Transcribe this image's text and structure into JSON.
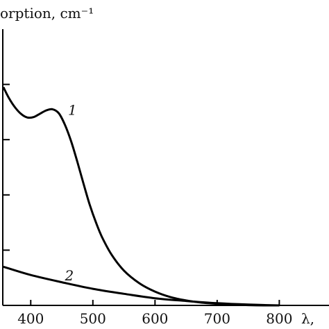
{
  "chart_data": {
    "type": "line",
    "ylabel": "orption, cm⁻¹",
    "xlabel": "λ,",
    "xlim": [
      355,
      880
    ],
    "ylim": [
      0,
      5
    ],
    "xticks": [
      400,
      500,
      600,
      700,
      800
    ],
    "yticks": [
      1,
      2,
      3,
      4
    ],
    "grid": false,
    "legend": "none",
    "line_color": "#000000",
    "series": [
      {
        "name": "1",
        "label_at": [
          460,
          3.45
        ],
        "x": [
          356,
          365,
          375,
          385,
          395,
          405,
          415,
          425,
          435,
          445,
          455,
          465,
          475,
          485,
          495,
          505,
          515,
          530,
          550,
          575,
          600,
          625,
          650,
          675,
          700,
          725,
          750,
          775,
          800
        ],
        "y": [
          3.95,
          3.75,
          3.58,
          3.46,
          3.4,
          3.41,
          3.47,
          3.53,
          3.55,
          3.48,
          3.27,
          2.97,
          2.6,
          2.2,
          1.82,
          1.5,
          1.23,
          0.92,
          0.63,
          0.4,
          0.25,
          0.15,
          0.09,
          0.05,
          0.03,
          0.015,
          0.005,
          0.0,
          0.0
        ]
      },
      {
        "name": "2",
        "label_at": [
          455,
          0.45
        ],
        "x": [
          356,
          400,
          450,
          500,
          550,
          600,
          650,
          700,
          750,
          800
        ],
        "y": [
          0.7,
          0.55,
          0.42,
          0.3,
          0.21,
          0.13,
          0.08,
          0.04,
          0.015,
          0.0
        ]
      }
    ]
  }
}
